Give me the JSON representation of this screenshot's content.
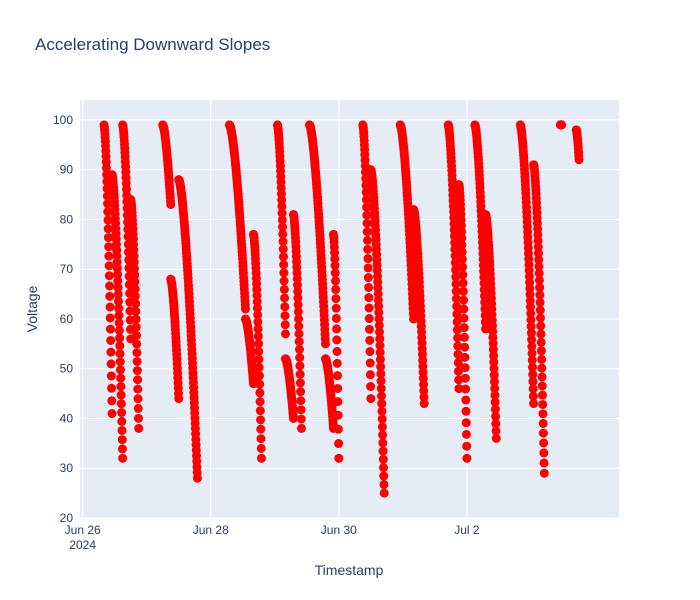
{
  "chart_data": {
    "type": "scatter",
    "title": "Accelerating Downward Slopes",
    "xlabel": "Timestamp",
    "ylabel": "Voltage",
    "x_tick_labels": [
      {
        "value": "2024-06-26",
        "label": "Jun 26",
        "sublabel": "2024"
      },
      {
        "value": "2024-06-28",
        "label": "Jun 28",
        "sublabel": ""
      },
      {
        "value": "2024-06-30",
        "label": "Jun 30",
        "sublabel": ""
      },
      {
        "value": "2024-07-02",
        "label": "Jul 2",
        "sublabel": ""
      }
    ],
    "xlim": [
      "2024-06-25T23:00",
      "2024-07-04T09:00"
    ],
    "ylim": [
      20,
      104
    ],
    "y_ticks": [
      20,
      30,
      40,
      50,
      60,
      70,
      80,
      90,
      100
    ],
    "grid": true,
    "marker_color": "#ff0000",
    "segments": [
      {
        "start": "2024-06-26T08:00",
        "end": "2024-06-26T11:00",
        "y_start": 99,
        "y_end": 41
      },
      {
        "start": "2024-06-26T11:00",
        "end": "2024-06-26T15:00",
        "y_start": 89,
        "y_end": 32
      },
      {
        "start": "2024-06-26T15:00",
        "end": "2024-06-26T18:00",
        "y_start": 99,
        "y_end": 56
      },
      {
        "start": "2024-06-26T18:00",
        "end": "2024-06-26T21:00",
        "y_start": 84,
        "y_end": 38
      },
      {
        "start": "2024-06-27T06:00",
        "end": "2024-06-27T09:00",
        "y_start": 99,
        "y_end": 83
      },
      {
        "start": "2024-06-27T09:00",
        "end": "2024-06-27T12:00",
        "y_start": 68,
        "y_end": 44
      },
      {
        "start": "2024-06-27T12:00",
        "end": "2024-06-27T19:00",
        "y_start": 88,
        "y_end": 28
      },
      {
        "start": "2024-06-28T07:00",
        "end": "2024-06-28T13:00",
        "y_start": 99,
        "y_end": 62
      },
      {
        "start": "2024-06-28T13:00",
        "end": "2024-06-28T16:00",
        "y_start": 60,
        "y_end": 47
      },
      {
        "start": "2024-06-28T16:00",
        "end": "2024-06-28T19:00",
        "y_start": 77,
        "y_end": 32
      },
      {
        "start": "2024-06-29T01:00",
        "end": "2024-06-29T04:00",
        "y_start": 99,
        "y_end": 57
      },
      {
        "start": "2024-06-29T04:00",
        "end": "2024-06-29T07:00",
        "y_start": 52,
        "y_end": 40
      },
      {
        "start": "2024-06-29T07:00",
        "end": "2024-06-29T10:00",
        "y_start": 81,
        "y_end": 38
      },
      {
        "start": "2024-06-29T13:00",
        "end": "2024-06-29T19:00",
        "y_start": 99,
        "y_end": 55
      },
      {
        "start": "2024-06-29T19:00",
        "end": "2024-06-29T22:00",
        "y_start": 52,
        "y_end": 38
      },
      {
        "start": "2024-06-29T22:00",
        "end": "2024-06-30T00:00",
        "y_start": 77,
        "y_end": 32
      },
      {
        "start": "2024-06-30T09:00",
        "end": "2024-06-30T12:00",
        "y_start": 99,
        "y_end": 44
      },
      {
        "start": "2024-06-30T12:00",
        "end": "2024-06-30T17:00",
        "y_start": 90,
        "y_end": 25
      },
      {
        "start": "2024-06-30T23:00",
        "end": "2024-07-01T04:00",
        "y_start": 99,
        "y_end": 60
      },
      {
        "start": "2024-07-01T04:00",
        "end": "2024-07-01T08:00",
        "y_start": 82,
        "y_end": 43
      },
      {
        "start": "2024-07-01T17:00",
        "end": "2024-07-01T21:00",
        "y_start": 99,
        "y_end": 46
      },
      {
        "start": "2024-07-01T21:00",
        "end": "2024-07-02T00:00",
        "y_start": 87,
        "y_end": 32
      },
      {
        "start": "2024-07-02T03:00",
        "end": "2024-07-02T07:00",
        "y_start": 99,
        "y_end": 58
      },
      {
        "start": "2024-07-02T07:00",
        "end": "2024-07-02T11:00",
        "y_start": 81,
        "y_end": 36
      },
      {
        "start": "2024-07-02T20:00",
        "end": "2024-07-03T01:00",
        "y_start": 99,
        "y_end": 43
      },
      {
        "start": "2024-07-03T01:00",
        "end": "2024-07-03T05:00",
        "y_start": 91,
        "y_end": 29
      },
      {
        "start": "2024-07-03T11:00",
        "end": "2024-07-03T11:30",
        "y_start": 99,
        "y_end": 99
      },
      {
        "start": "2024-07-03T17:00",
        "end": "2024-07-03T18:00",
        "y_start": 98,
        "y_end": 92
      }
    ]
  }
}
